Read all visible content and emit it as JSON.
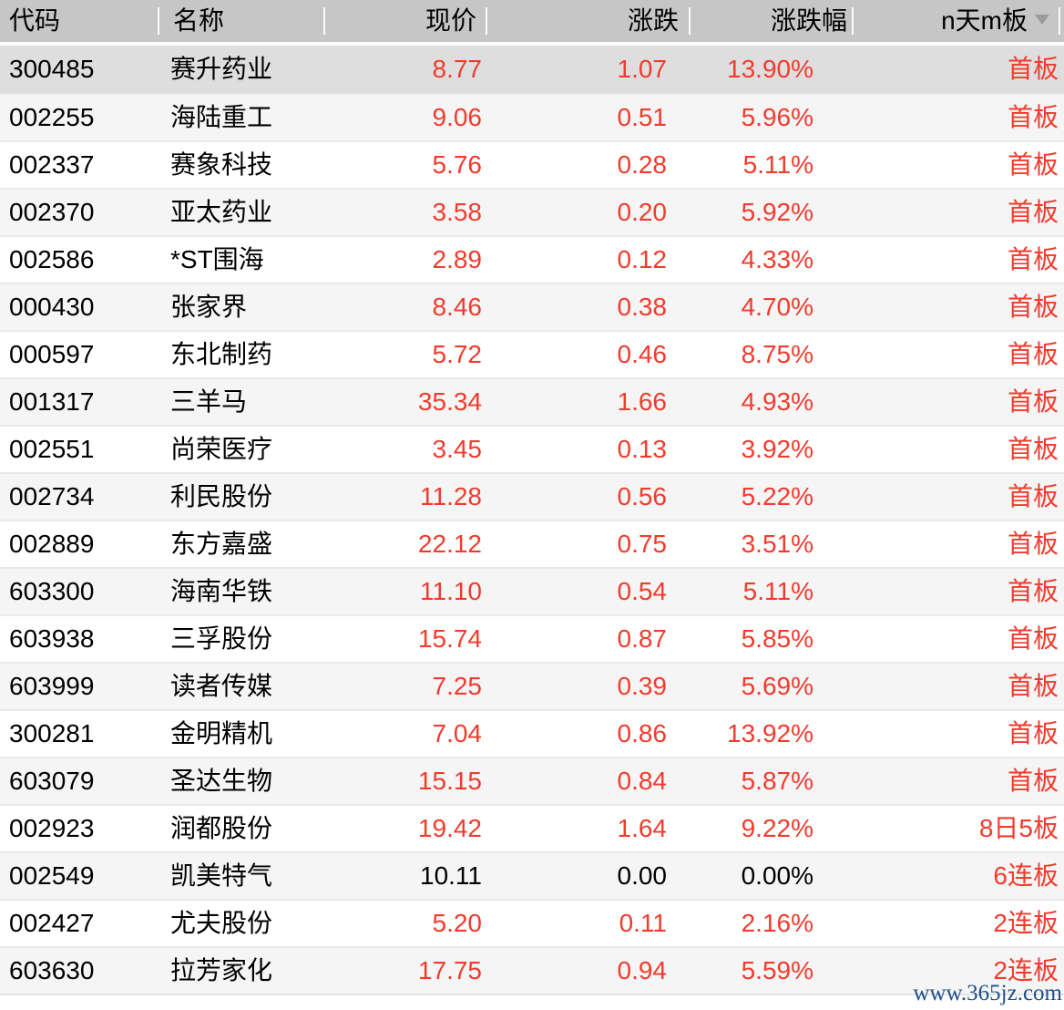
{
  "watermark": "www.365jz.com",
  "colors": {
    "up_red": "#f23b2c",
    "flat_black": "#000000",
    "header_bg": "#c6c6c6",
    "selected_row_bg": "#dedede",
    "alt_row_bg": "#f5f5f6",
    "watermark_blue": "#1d4f8a"
  },
  "table": {
    "columns": [
      {
        "key": "code",
        "label": "代码",
        "align": "left"
      },
      {
        "key": "name",
        "label": "名称",
        "align": "left"
      },
      {
        "key": "price",
        "label": "现价",
        "align": "right"
      },
      {
        "key": "change",
        "label": "涨跌",
        "align": "right"
      },
      {
        "key": "pct",
        "label": "涨跌幅",
        "align": "right"
      },
      {
        "key": "boards",
        "label": "n天m板",
        "align": "right",
        "sort_icon": "triangle-down"
      }
    ],
    "rows": [
      {
        "code": "300485",
        "name": "赛升药业",
        "price": "8.77",
        "change": "1.07",
        "pct": "13.90%",
        "boards": "首板",
        "selected": true
      },
      {
        "code": "002255",
        "name": "海陆重工",
        "price": "9.06",
        "change": "0.51",
        "pct": "5.96%",
        "boards": "首板"
      },
      {
        "code": "002337",
        "name": "赛象科技",
        "price": "5.76",
        "change": "0.28",
        "pct": "5.11%",
        "boards": "首板"
      },
      {
        "code": "002370",
        "name": "亚太药业",
        "price": "3.58",
        "change": "0.20",
        "pct": "5.92%",
        "boards": "首板"
      },
      {
        "code": "002586",
        "name": "*ST围海",
        "price": "2.89",
        "change": "0.12",
        "pct": "4.33%",
        "boards": "首板"
      },
      {
        "code": "000430",
        "name": "张家界",
        "price": "8.46",
        "change": "0.38",
        "pct": "4.70%",
        "boards": "首板"
      },
      {
        "code": "000597",
        "name": "东北制药",
        "price": "5.72",
        "change": "0.46",
        "pct": "8.75%",
        "boards": "首板"
      },
      {
        "code": "001317",
        "name": "三羊马",
        "price": "35.34",
        "change": "1.66",
        "pct": "4.93%",
        "boards": "首板"
      },
      {
        "code": "002551",
        "name": "尚荣医疗",
        "price": "3.45",
        "change": "0.13",
        "pct": "3.92%",
        "boards": "首板"
      },
      {
        "code": "002734",
        "name": "利民股份",
        "price": "11.28",
        "change": "0.56",
        "pct": "5.22%",
        "boards": "首板"
      },
      {
        "code": "002889",
        "name": "东方嘉盛",
        "price": "22.12",
        "change": "0.75",
        "pct": "3.51%",
        "boards": "首板"
      },
      {
        "code": "603300",
        "name": "海南华铁",
        "price": "11.10",
        "change": "0.54",
        "pct": "5.11%",
        "boards": "首板"
      },
      {
        "code": "603938",
        "name": "三孚股份",
        "price": "15.74",
        "change": "0.87",
        "pct": "5.85%",
        "boards": "首板"
      },
      {
        "code": "603999",
        "name": "读者传媒",
        "price": "7.25",
        "change": "0.39",
        "pct": "5.69%",
        "boards": "首板"
      },
      {
        "code": "300281",
        "name": "金明精机",
        "price": "7.04",
        "change": "0.86",
        "pct": "13.92%",
        "boards": "首板"
      },
      {
        "code": "603079",
        "name": "圣达生物",
        "price": "15.15",
        "change": "0.84",
        "pct": "5.87%",
        "boards": "首板"
      },
      {
        "code": "002923",
        "name": "润都股份",
        "price": "19.42",
        "change": "1.64",
        "pct": "9.22%",
        "boards": "8日5板"
      },
      {
        "code": "002549",
        "name": "凯美特气",
        "price": "10.11",
        "change": "0.00",
        "pct": "0.00%",
        "boards": "6连板",
        "flat": true
      },
      {
        "code": "002427",
        "name": "尤夫股份",
        "price": "5.20",
        "change": "0.11",
        "pct": "2.16%",
        "boards": "2连板"
      },
      {
        "code": "603630",
        "name": "拉芳家化",
        "price": "17.75",
        "change": "0.94",
        "pct": "5.59%",
        "boards": "2连板"
      }
    ]
  }
}
